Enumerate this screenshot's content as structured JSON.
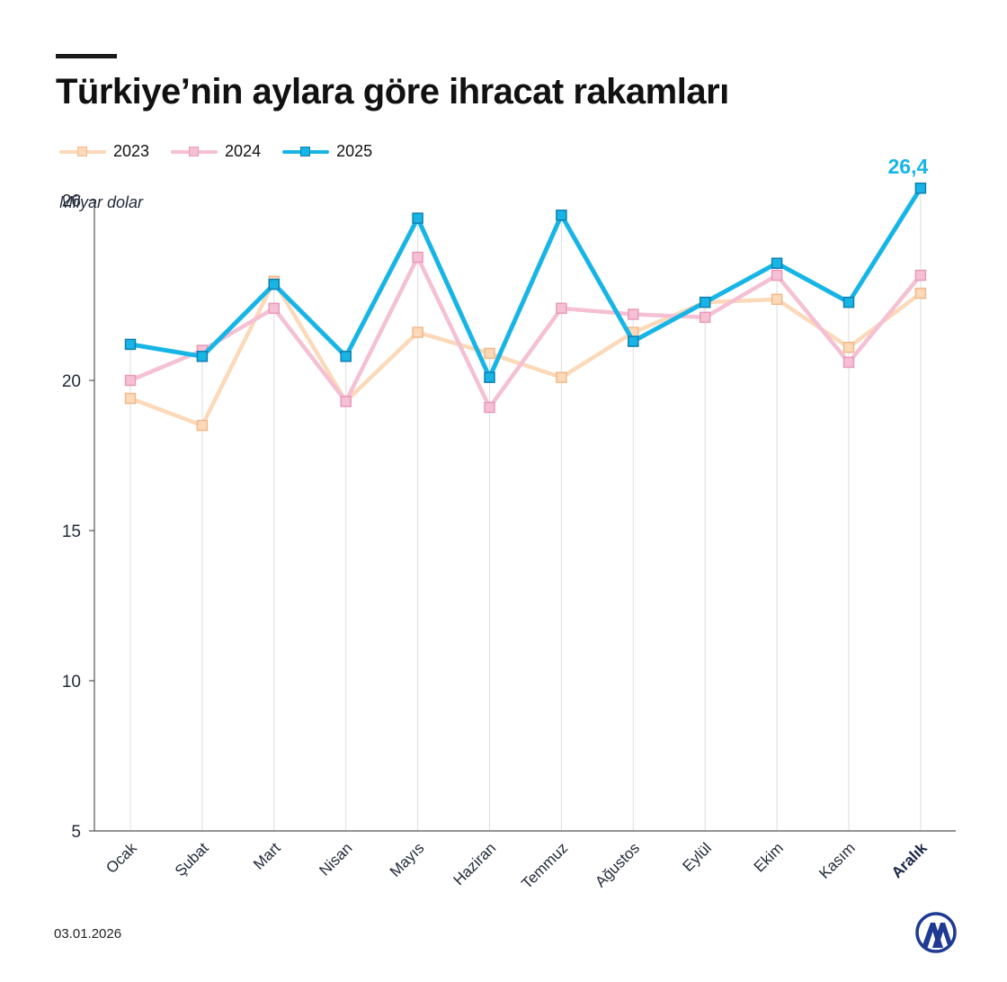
{
  "title": "Türkiye’nin aylara göre ihracat rakamları",
  "date": "03.01.2026",
  "logo_icon": "aa-logo-icon",
  "colors": {
    "2023": "#fbd9b9",
    "2024": "#f5bfd4",
    "2025": "#17b5e6",
    "axis": "#555555",
    "grid": "#dddddd",
    "text": "#222b3a"
  },
  "chart_data": {
    "type": "line",
    "ylabel": "Milyar dolar",
    "xlabel": "",
    "ylim": [
      5,
      26.4
    ],
    "yticks": [
      5,
      10,
      15,
      20,
      26
    ],
    "grid": "vertical",
    "legend": "top-left",
    "categories": [
      "Ocak",
      "Şubat",
      "Mart",
      "Nisan",
      "Mayıs",
      "Haziran",
      "Temmuz",
      "Ağustos",
      "Eylül",
      "Ekim",
      "Kasım",
      "Aralık"
    ],
    "highlight_category": "Aralık",
    "series": [
      {
        "name": "2023",
        "values": [
          19.4,
          18.5,
          23.3,
          19.3,
          21.6,
          20.9,
          20.1,
          21.6,
          22.6,
          22.7,
          21.1,
          22.9
        ]
      },
      {
        "name": "2024",
        "values": [
          20.0,
          21.0,
          22.4,
          19.3,
          24.1,
          19.1,
          22.4,
          22.2,
          22.1,
          23.5,
          20.6,
          23.5
        ]
      },
      {
        "name": "2025",
        "values": [
          21.2,
          20.8,
          23.2,
          20.8,
          25.4,
          20.1,
          25.5,
          21.3,
          22.6,
          23.9,
          22.6,
          26.4
        ]
      }
    ],
    "annotations": [
      {
        "series": "2025",
        "category": "Aralık",
        "text": "26,4"
      }
    ]
  }
}
